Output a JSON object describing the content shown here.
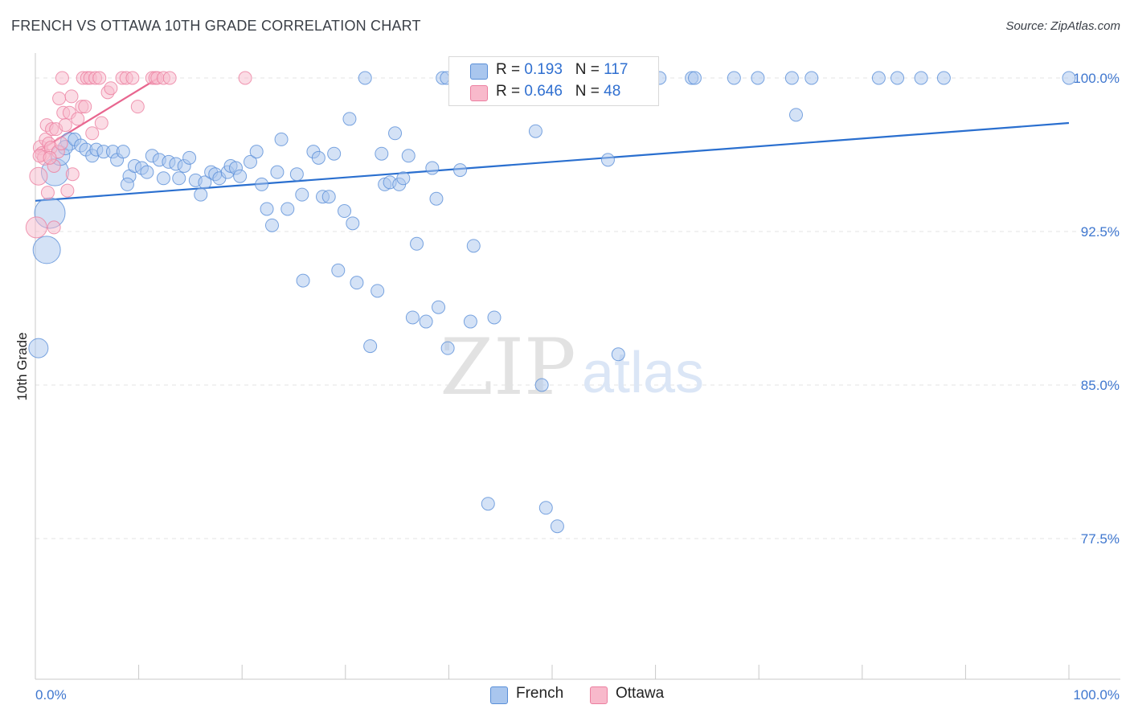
{
  "title": "FRENCH VS OTTAWA 10TH GRADE CORRELATION CHART",
  "source": "Source: ZipAtlas.com",
  "watermark": {
    "zip": "ZIP",
    "atlas": "atlas"
  },
  "legend": {
    "rows": [
      {
        "r_label": "R = ",
        "r_value": "0.193",
        "n_label": "N = ",
        "n_value": "117"
      },
      {
        "r_label": "R = ",
        "r_value": "0.646",
        "n_label": "N = ",
        "n_value": "48"
      }
    ]
  },
  "bottom_legend": {
    "french": "French",
    "ottawa": "Ottawa"
  },
  "colors": {
    "french_fill": "#a9c6ee",
    "french_stroke": "#5a8fd8",
    "french_line": "#2a6fcf",
    "ottawa_fill": "#f8b9cb",
    "ottawa_stroke": "#ec7fa0",
    "ottawa_line": "#e8668f",
    "tick_label": "#3f77cf",
    "grid": "#e3e3e3"
  },
  "chart_data": {
    "type": "scatter",
    "title": "FRENCH VS OTTAWA 10TH GRADE CORRELATION CHART",
    "xlabel": "",
    "ylabel": "10th Grade",
    "xlim": [
      0,
      100
    ],
    "ylim": [
      70.5,
      101.3
    ],
    "x_tick_labels": [
      {
        "value": 0,
        "label": "0.0%"
      },
      {
        "value": 100,
        "label": "100.0%"
      }
    ],
    "y_tick_labels": [
      {
        "value": 100.0,
        "label": "100.0%"
      },
      {
        "value": 92.5,
        "label": "92.5%"
      },
      {
        "value": 85.0,
        "label": "85.0%"
      },
      {
        "value": 77.5,
        "label": "77.5%"
      }
    ],
    "x_minor_ticks": [
      0,
      10,
      20,
      30,
      40,
      50,
      60,
      70,
      80,
      90,
      100
    ],
    "grid": true,
    "series": [
      {
        "name": "French",
        "trend": {
          "x": [
            0,
            100
          ],
          "y": [
            94.0,
            97.8
          ]
        },
        "points": [
          {
            "x": 0.3,
            "y": 86.8,
            "s": 24
          },
          {
            "x": 1.1,
            "y": 91.6,
            "s": 34
          },
          {
            "x": 1.4,
            "y": 93.4,
            "s": 38
          },
          {
            "x": 1.9,
            "y": 95.4,
            "s": 34
          },
          {
            "x": 2.4,
            "y": 96.2,
            "s": 24
          },
          {
            "x": 3.3,
            "y": 96.9,
            "s": 22
          },
          {
            "x": 2.9,
            "y": 96.6,
            "s": 18
          },
          {
            "x": 3.8,
            "y": 97.0,
            "s": 16
          },
          {
            "x": 4.4,
            "y": 96.7,
            "s": 16
          },
          {
            "x": 4.9,
            "y": 96.5,
            "s": 16
          },
          {
            "x": 5.5,
            "y": 96.2,
            "s": 16
          },
          {
            "x": 5.9,
            "y": 96.5,
            "s": 16
          },
          {
            "x": 6.6,
            "y": 96.4,
            "s": 16
          },
          {
            "x": 7.5,
            "y": 96.4,
            "s": 16
          },
          {
            "x": 7.9,
            "y": 96.0,
            "s": 16
          },
          {
            "x": 8.5,
            "y": 96.4,
            "s": 16
          },
          {
            "x": 9.1,
            "y": 95.2,
            "s": 16
          },
          {
            "x": 8.9,
            "y": 94.8,
            "s": 16
          },
          {
            "x": 9.6,
            "y": 95.7,
            "s": 16
          },
          {
            "x": 10.3,
            "y": 95.6,
            "s": 16
          },
          {
            "x": 10.8,
            "y": 95.4,
            "s": 16
          },
          {
            "x": 11.3,
            "y": 96.2,
            "s": 16
          },
          {
            "x": 12.0,
            "y": 96.0,
            "s": 16
          },
          {
            "x": 12.4,
            "y": 95.1,
            "s": 16
          },
          {
            "x": 12.9,
            "y": 95.9,
            "s": 16
          },
          {
            "x": 13.6,
            "y": 95.8,
            "s": 16
          },
          {
            "x": 13.9,
            "y": 95.1,
            "s": 16
          },
          {
            "x": 14.4,
            "y": 95.7,
            "s": 16
          },
          {
            "x": 14.9,
            "y": 96.1,
            "s": 16
          },
          {
            "x": 15.5,
            "y": 95.0,
            "s": 16
          },
          {
            "x": 16.0,
            "y": 94.3,
            "s": 16
          },
          {
            "x": 16.4,
            "y": 94.9,
            "s": 16
          },
          {
            "x": 17.0,
            "y": 95.4,
            "s": 16
          },
          {
            "x": 17.4,
            "y": 95.3,
            "s": 16
          },
          {
            "x": 17.8,
            "y": 95.1,
            "s": 16
          },
          {
            "x": 18.6,
            "y": 95.4,
            "s": 16
          },
          {
            "x": 18.9,
            "y": 95.7,
            "s": 16
          },
          {
            "x": 19.4,
            "y": 95.6,
            "s": 16
          },
          {
            "x": 19.8,
            "y": 95.2,
            "s": 16
          },
          {
            "x": 20.8,
            "y": 95.9,
            "s": 16
          },
          {
            "x": 21.4,
            "y": 96.4,
            "s": 16
          },
          {
            "x": 21.9,
            "y": 94.8,
            "s": 16
          },
          {
            "x": 22.4,
            "y": 93.6,
            "s": 16
          },
          {
            "x": 22.9,
            "y": 92.8,
            "s": 16
          },
          {
            "x": 23.4,
            "y": 95.4,
            "s": 16
          },
          {
            "x": 23.8,
            "y": 97.0,
            "s": 16
          },
          {
            "x": 24.4,
            "y": 93.6,
            "s": 16
          },
          {
            "x": 25.3,
            "y": 95.3,
            "s": 16
          },
          {
            "x": 25.8,
            "y": 94.3,
            "s": 16
          },
          {
            "x": 25.9,
            "y": 90.1,
            "s": 16
          },
          {
            "x": 26.9,
            "y": 96.4,
            "s": 16
          },
          {
            "x": 27.4,
            "y": 96.1,
            "s": 16
          },
          {
            "x": 27.8,
            "y": 94.2,
            "s": 16
          },
          {
            "x": 28.4,
            "y": 94.2,
            "s": 16
          },
          {
            "x": 28.9,
            "y": 96.3,
            "s": 16
          },
          {
            "x": 29.3,
            "y": 90.6,
            "s": 16
          },
          {
            "x": 29.9,
            "y": 93.5,
            "s": 16
          },
          {
            "x": 30.4,
            "y": 98.0,
            "s": 16
          },
          {
            "x": 30.7,
            "y": 92.9,
            "s": 16
          },
          {
            "x": 31.1,
            "y": 90.0,
            "s": 16
          },
          {
            "x": 31.9,
            "y": 100.0,
            "s": 16
          },
          {
            "x": 32.4,
            "y": 86.9,
            "s": 16
          },
          {
            "x": 33.1,
            "y": 89.6,
            "s": 16
          },
          {
            "x": 33.5,
            "y": 96.3,
            "s": 16
          },
          {
            "x": 33.8,
            "y": 94.8,
            "s": 16
          },
          {
            "x": 34.3,
            "y": 94.9,
            "s": 16
          },
          {
            "x": 34.8,
            "y": 97.3,
            "s": 16
          },
          {
            "x": 35.2,
            "y": 94.8,
            "s": 16
          },
          {
            "x": 35.6,
            "y": 95.1,
            "s": 16
          },
          {
            "x": 36.1,
            "y": 96.2,
            "s": 16
          },
          {
            "x": 36.5,
            "y": 88.3,
            "s": 16
          },
          {
            "x": 36.9,
            "y": 91.9,
            "s": 16
          },
          {
            "x": 37.8,
            "y": 88.1,
            "s": 16
          },
          {
            "x": 38.4,
            "y": 95.6,
            "s": 16
          },
          {
            "x": 38.8,
            "y": 94.1,
            "s": 16
          },
          {
            "x": 39.0,
            "y": 88.8,
            "s": 16
          },
          {
            "x": 39.4,
            "y": 100.0,
            "s": 16
          },
          {
            "x": 39.8,
            "y": 100.0,
            "s": 16
          },
          {
            "x": 39.9,
            "y": 86.8,
            "s": 16
          },
          {
            "x": 40.8,
            "y": 100.0,
            "s": 16
          },
          {
            "x": 41.1,
            "y": 95.5,
            "s": 16
          },
          {
            "x": 41.6,
            "y": 100.0,
            "s": 16
          },
          {
            "x": 42.1,
            "y": 88.1,
            "s": 16
          },
          {
            "x": 42.4,
            "y": 91.8,
            "s": 16
          },
          {
            "x": 43.8,
            "y": 79.2,
            "s": 16
          },
          {
            "x": 44.4,
            "y": 88.3,
            "s": 16
          },
          {
            "x": 45.4,
            "y": 100.0,
            "s": 16
          },
          {
            "x": 46.1,
            "y": 100.0,
            "s": 16
          },
          {
            "x": 47.2,
            "y": 100.0,
            "s": 16
          },
          {
            "x": 48.4,
            "y": 97.4,
            "s": 16
          },
          {
            "x": 49.0,
            "y": 85.0,
            "s": 16
          },
          {
            "x": 49.4,
            "y": 79.0,
            "s": 16
          },
          {
            "x": 50.5,
            "y": 78.1,
            "s": 16
          },
          {
            "x": 51.8,
            "y": 100.0,
            "s": 16
          },
          {
            "x": 54.4,
            "y": 100.0,
            "s": 16
          },
          {
            "x": 55.4,
            "y": 96.0,
            "s": 16
          },
          {
            "x": 56.4,
            "y": 86.5,
            "s": 16
          },
          {
            "x": 58.4,
            "y": 100.0,
            "s": 16
          },
          {
            "x": 60.4,
            "y": 100.0,
            "s": 16
          },
          {
            "x": 63.5,
            "y": 100.0,
            "s": 16
          },
          {
            "x": 63.8,
            "y": 100.0,
            "s": 16
          },
          {
            "x": 67.6,
            "y": 100.0,
            "s": 16
          },
          {
            "x": 69.9,
            "y": 100.0,
            "s": 16
          },
          {
            "x": 73.2,
            "y": 100.0,
            "s": 16
          },
          {
            "x": 73.6,
            "y": 98.2,
            "s": 16
          },
          {
            "x": 75.1,
            "y": 100.0,
            "s": 16
          },
          {
            "x": 81.6,
            "y": 100.0,
            "s": 16
          },
          {
            "x": 83.4,
            "y": 100.0,
            "s": 16
          },
          {
            "x": 85.7,
            "y": 100.0,
            "s": 16
          },
          {
            "x": 87.9,
            "y": 100.0,
            "s": 16
          },
          {
            "x": 100.0,
            "y": 100.0,
            "s": 16
          }
        ]
      },
      {
        "name": "Ottawa",
        "trend": {
          "x": [
            0.2,
            11.9
          ],
          "y": [
            96.4,
            100.0
          ]
        },
        "points": [
          {
            "x": 0.1,
            "y": 92.7,
            "s": 26
          },
          {
            "x": 0.3,
            "y": 95.2,
            "s": 22
          },
          {
            "x": 0.5,
            "y": 96.6,
            "s": 18
          },
          {
            "x": 0.7,
            "y": 96.3,
            "s": 18
          },
          {
            "x": 0.9,
            "y": 96.1,
            "s": 18
          },
          {
            "x": 1.0,
            "y": 97.0,
            "s": 16
          },
          {
            "x": 1.1,
            "y": 97.7,
            "s": 16
          },
          {
            "x": 1.2,
            "y": 94.4,
            "s": 16
          },
          {
            "x": 1.3,
            "y": 96.8,
            "s": 16
          },
          {
            "x": 1.5,
            "y": 96.6,
            "s": 16
          },
          {
            "x": 1.6,
            "y": 97.5,
            "s": 16
          },
          {
            "x": 1.8,
            "y": 95.7,
            "s": 16
          },
          {
            "x": 1.8,
            "y": 92.7,
            "s": 16
          },
          {
            "x": 2.0,
            "y": 97.5,
            "s": 16
          },
          {
            "x": 2.2,
            "y": 96.4,
            "s": 16
          },
          {
            "x": 2.3,
            "y": 99.0,
            "s": 16
          },
          {
            "x": 2.5,
            "y": 96.8,
            "s": 16
          },
          {
            "x": 2.7,
            "y": 98.3,
            "s": 16
          },
          {
            "x": 2.9,
            "y": 97.7,
            "s": 16
          },
          {
            "x": 3.1,
            "y": 94.5,
            "s": 16
          },
          {
            "x": 3.3,
            "y": 98.3,
            "s": 16
          },
          {
            "x": 3.5,
            "y": 99.1,
            "s": 16
          },
          {
            "x": 3.6,
            "y": 95.3,
            "s": 16
          },
          {
            "x": 4.1,
            "y": 98.0,
            "s": 16
          },
          {
            "x": 4.5,
            "y": 98.6,
            "s": 16
          },
          {
            "x": 4.8,
            "y": 98.6,
            "s": 16
          },
          {
            "x": 2.6,
            "y": 100.0,
            "s": 16
          },
          {
            "x": 4.6,
            "y": 100.0,
            "s": 16
          },
          {
            "x": 5.0,
            "y": 100.0,
            "s": 16
          },
          {
            "x": 5.3,
            "y": 100.0,
            "s": 16
          },
          {
            "x": 5.5,
            "y": 97.3,
            "s": 16
          },
          {
            "x": 5.8,
            "y": 100.0,
            "s": 16
          },
          {
            "x": 6.2,
            "y": 100.0,
            "s": 16
          },
          {
            "x": 6.4,
            "y": 97.8,
            "s": 16
          },
          {
            "x": 7.0,
            "y": 99.3,
            "s": 16
          },
          {
            "x": 7.3,
            "y": 99.5,
            "s": 16
          },
          {
            "x": 8.4,
            "y": 100.0,
            "s": 16
          },
          {
            "x": 8.8,
            "y": 100.0,
            "s": 16
          },
          {
            "x": 9.4,
            "y": 100.0,
            "s": 16
          },
          {
            "x": 9.9,
            "y": 98.6,
            "s": 16
          },
          {
            "x": 11.3,
            "y": 100.0,
            "s": 16
          },
          {
            "x": 11.6,
            "y": 100.0,
            "s": 16
          },
          {
            "x": 11.8,
            "y": 100.0,
            "s": 16
          },
          {
            "x": 12.4,
            "y": 100.0,
            "s": 16
          },
          {
            "x": 13.0,
            "y": 100.0,
            "s": 16
          },
          {
            "x": 20.3,
            "y": 100.0,
            "s": 16
          },
          {
            "x": 0.4,
            "y": 96.2,
            "s": 16
          },
          {
            "x": 1.4,
            "y": 96.1,
            "s": 16
          }
        ]
      }
    ]
  }
}
